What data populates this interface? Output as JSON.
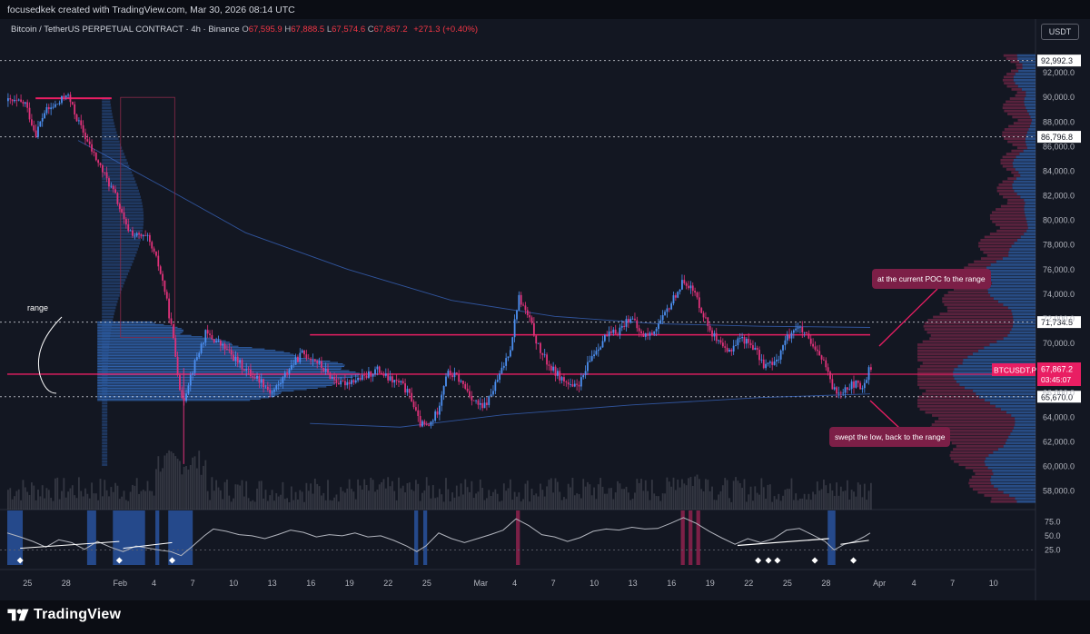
{
  "header": {
    "credit": "focusedkek created with TradingView.com, Mar 30, 2026 08:14 UTC"
  },
  "legend": {
    "symbol": "Bitcoin / TetherUS PERPETUAL CONTRACT · 4h · Binance",
    "open_label": "O",
    "open": "67,595.9",
    "high_label": "H",
    "high": "67,888.5",
    "low_label": "L",
    "low": "67,574.6",
    "close_label": "C",
    "close": "67,867.2",
    "change": "+271.3 (+0.40%)"
  },
  "currency_button": "USDT",
  "footer": {
    "brand": "TradingView"
  },
  "annotations": {
    "range_label": "range",
    "poc_callout": "at the current POC fo the range",
    "swept_callout": "swept the low, back to the range"
  },
  "colors": {
    "bg": "#131722",
    "up": "#4c8ff0",
    "down": "#e0327a",
    "accent": "#e91e63",
    "poc": "#e91e63",
    "grid": "#1e222d",
    "profile_blue": "#3a78d6",
    "profile_pink": "#b03060"
  },
  "chart_data": [
    {
      "type": "candlestick",
      "title": "Bitcoin / TetherUS PERPETUAL CONTRACT · 4h · Binance",
      "timeframe": "4h",
      "ylim": [
        56500,
        94000
      ],
      "grid": false,
      "price_axis_labels": [
        "92,000.0",
        "90,000.0",
        "88,000.0",
        "86,000.0",
        "84,000.0",
        "82,000.0",
        "80,000.0",
        "78,000.0",
        "76,000.0",
        "74,000.0",
        "72,000.0",
        "70,000.0",
        "66,000.0",
        "64,000.0",
        "62,000.0",
        "60,000.0",
        "58,000.0"
      ],
      "price_axis_values": [
        92000,
        90000,
        88000,
        86000,
        84000,
        82000,
        80000,
        78000,
        76000,
        74000,
        72000,
        70000,
        66000,
        64000,
        62000,
        60000,
        58000
      ],
      "time_axis_labels": [
        "25",
        "28",
        "Feb",
        "4",
        "7",
        "10",
        "13",
        "16",
        "19",
        "22",
        "25",
        "Mar",
        "4",
        "7",
        "10",
        "13",
        "16",
        "19",
        "22",
        "25",
        "28",
        "Apr",
        "4",
        "7",
        "10"
      ],
      "time_axis_day_index": [
        -7,
        -4,
        0,
        3,
        6,
        9,
        12,
        15,
        18,
        21,
        24,
        28,
        31,
        34,
        37,
        40,
        43,
        46,
        49,
        52,
        55,
        59,
        62,
        65,
        68
      ],
      "day_range_plotted": [
        -8.5,
        58.5
      ],
      "price_path": [
        [
          -8.5,
          89700
        ],
        [
          -7,
          89500
        ],
        [
          -6.2,
          87000
        ],
        [
          -5.5,
          88800
        ],
        [
          -4.3,
          89600
        ],
        [
          -3.8,
          90400
        ],
        [
          -3,
          88300
        ],
        [
          -2,
          86000
        ],
        [
          -1,
          84000
        ],
        [
          0,
          82000
        ],
        [
          0.8,
          79500
        ],
        [
          1.5,
          78800
        ],
        [
          2.5,
          78500
        ],
        [
          3.3,
          76500
        ],
        [
          3.8,
          74500
        ],
        [
          4.4,
          71000
        ],
        [
          4.8,
          68000
        ],
        [
          5.2,
          65000
        ],
        [
          5.7,
          67000
        ],
        [
          6.2,
          68500
        ],
        [
          7,
          70800
        ],
        [
          7.8,
          70200
        ],
        [
          8.6,
          69500
        ],
        [
          9.5,
          68500
        ],
        [
          10.5,
          67500
        ],
        [
          11.3,
          67000
        ],
        [
          12.1,
          66000
        ],
        [
          12.8,
          66800
        ],
        [
          13.5,
          68000
        ],
        [
          14.5,
          69200
        ],
        [
          15.5,
          68700
        ],
        [
          16.5,
          67500
        ],
        [
          17.5,
          66700
        ],
        [
          18.3,
          67000
        ],
        [
          19.3,
          67200
        ],
        [
          20.3,
          67900
        ],
        [
          21.2,
          67100
        ],
        [
          22.2,
          66700
        ],
        [
          23,
          65500
        ],
        [
          23.6,
          63500
        ],
        [
          24.3,
          63200
        ],
        [
          25,
          64500
        ],
        [
          25.7,
          67600
        ],
        [
          26.5,
          67300
        ],
        [
          27.3,
          66200
        ],
        [
          27.9,
          65300
        ],
        [
          28.5,
          64700
        ],
        [
          29,
          65500
        ],
        [
          30,
          67800
        ],
        [
          30.7,
          69800
        ],
        [
          31.3,
          73800
        ],
        [
          32.2,
          71800
        ],
        [
          32.9,
          69500
        ],
        [
          33.8,
          68000
        ],
        [
          34.8,
          67000
        ],
        [
          35.5,
          66300
        ],
        [
          36.2,
          67000
        ],
        [
          37,
          69000
        ],
        [
          38,
          70500
        ],
        [
          39,
          71000
        ],
        [
          40,
          72200
        ],
        [
          40.8,
          70700
        ],
        [
          41.5,
          70700
        ],
        [
          42.5,
          72000
        ],
        [
          43.5,
          74000
        ],
        [
          44.2,
          75200
        ],
        [
          45,
          74000
        ],
        [
          46,
          71500
        ],
        [
          46.8,
          70000
        ],
        [
          47.5,
          69200
        ],
        [
          48.5,
          70500
        ],
        [
          49.5,
          69800
        ],
        [
          50.3,
          68300
        ],
        [
          51.2,
          68300
        ],
        [
          52,
          70200
        ],
        [
          52.8,
          71400
        ],
        [
          53.5,
          70800
        ],
        [
          54.2,
          69500
        ],
        [
          55,
          68600
        ],
        [
          55.5,
          66800
        ],
        [
          56,
          66000
        ],
        [
          56.8,
          66500
        ],
        [
          57.5,
          66700
        ],
        [
          58,
          66200
        ],
        [
          58.5,
          67867
        ]
      ],
      "last_price": 67867.2,
      "last_price_symbol": "BTCUSDT.P",
      "countdown": "03:45:07",
      "horizontal_levels": [
        {
          "value": 92992.3,
          "label": "92,992.3",
          "style": "dotted"
        },
        {
          "value": 86796.8,
          "label": "86,796.8",
          "style": "dotted"
        },
        {
          "value": 71734.5,
          "label": "71,734.5",
          "style": "dotted"
        },
        {
          "value": 65670.0,
          "label": "65,670.0",
          "style": "dotted"
        }
      ],
      "range_lines": [
        {
          "value": 70700,
          "from_day": 15,
          "to_day": 58.5
        },
        {
          "value": 67500,
          "from_day": -8.5,
          "to_day": 58.5
        }
      ],
      "volume_profile_range": {
        "from_price": 65300,
        "to_price": 71700,
        "poc": 67500
      },
      "volume_profile_visible_range": {
        "from_price": 57000,
        "to_price": 93500,
        "poc": 67500
      }
    },
    {
      "type": "line",
      "title": "",
      "ylim": [
        0,
        90
      ],
      "tick_labels": [
        "75.0",
        "50.0",
        "25.0"
      ],
      "tick_values": [
        75,
        50,
        25
      ],
      "oscillator_path": [
        [
          -8.5,
          55
        ],
        [
          -7.5,
          48
        ],
        [
          -6.5,
          40
        ],
        [
          -5.5,
          30
        ],
        [
          -4.5,
          43
        ],
        [
          -3.5,
          38
        ],
        [
          -2.5,
          26
        ],
        [
          -1.5,
          40
        ],
        [
          -0.5,
          30
        ],
        [
          0.5,
          22
        ],
        [
          1.5,
          32
        ],
        [
          2.5,
          28
        ],
        [
          3.5,
          24
        ],
        [
          4.2,
          22
        ],
        [
          5,
          15
        ],
        [
          5.8,
          30
        ],
        [
          6.8,
          50
        ],
        [
          7.5,
          62
        ],
        [
          8.5,
          58
        ],
        [
          9.5,
          52
        ],
        [
          10.5,
          50
        ],
        [
          11.5,
          45
        ],
        [
          12.5,
          52
        ],
        [
          13.5,
          60
        ],
        [
          14.5,
          56
        ],
        [
          15.5,
          48
        ],
        [
          16.5,
          52
        ],
        [
          17.5,
          50
        ],
        [
          18.5,
          55
        ],
        [
          19.5,
          48
        ],
        [
          20.5,
          50
        ],
        [
          21.5,
          42
        ],
        [
          22.5,
          32
        ],
        [
          23.3,
          22
        ],
        [
          24,
          32
        ],
        [
          25,
          55
        ],
        [
          26,
          45
        ],
        [
          27,
          38
        ],
        [
          28,
          45
        ],
        [
          29,
          52
        ],
        [
          30,
          60
        ],
        [
          31,
          80
        ],
        [
          32,
          68
        ],
        [
          33,
          52
        ],
        [
          34,
          48
        ],
        [
          35,
          40
        ],
        [
          36,
          47
        ],
        [
          37,
          58
        ],
        [
          38,
          62
        ],
        [
          39,
          60
        ],
        [
          40,
          65
        ],
        [
          41,
          62
        ],
        [
          42,
          63
        ],
        [
          43,
          72
        ],
        [
          44,
          82
        ],
        [
          45,
          72
        ],
        [
          46,
          58
        ],
        [
          47,
          46
        ],
        [
          48,
          35
        ],
        [
          49,
          45
        ],
        [
          50,
          38
        ],
        [
          51,
          45
        ],
        [
          52,
          60
        ],
        [
          53,
          63
        ],
        [
          54,
          52
        ],
        [
          55,
          40
        ],
        [
          55.7,
          25
        ],
        [
          56.5,
          35
        ],
        [
          57.3,
          40
        ],
        [
          58,
          48
        ],
        [
          58.5,
          55
        ]
      ],
      "oversold_bands": [
        [
          -8.5,
          -7.3
        ],
        [
          -2.3,
          -1.6
        ],
        [
          -0.3,
          2.2
        ],
        [
          3.0,
          3.3
        ],
        [
          4.0,
          5.9
        ],
        [
          23.1,
          23.4
        ],
        [
          23.8,
          24.1
        ],
        [
          55.2,
          55.8
        ]
      ],
      "overbought_bands": [
        [
          31.0,
          31.3
        ],
        [
          43.8,
          44.1
        ],
        [
          44.4,
          44.7
        ],
        [
          45.0,
          45.3
        ]
      ],
      "divergence_markers_day": [
        -7.5,
        0.2,
        4.3,
        49.8,
        50.6,
        51.3,
        54.2,
        57.2
      ]
    }
  ]
}
